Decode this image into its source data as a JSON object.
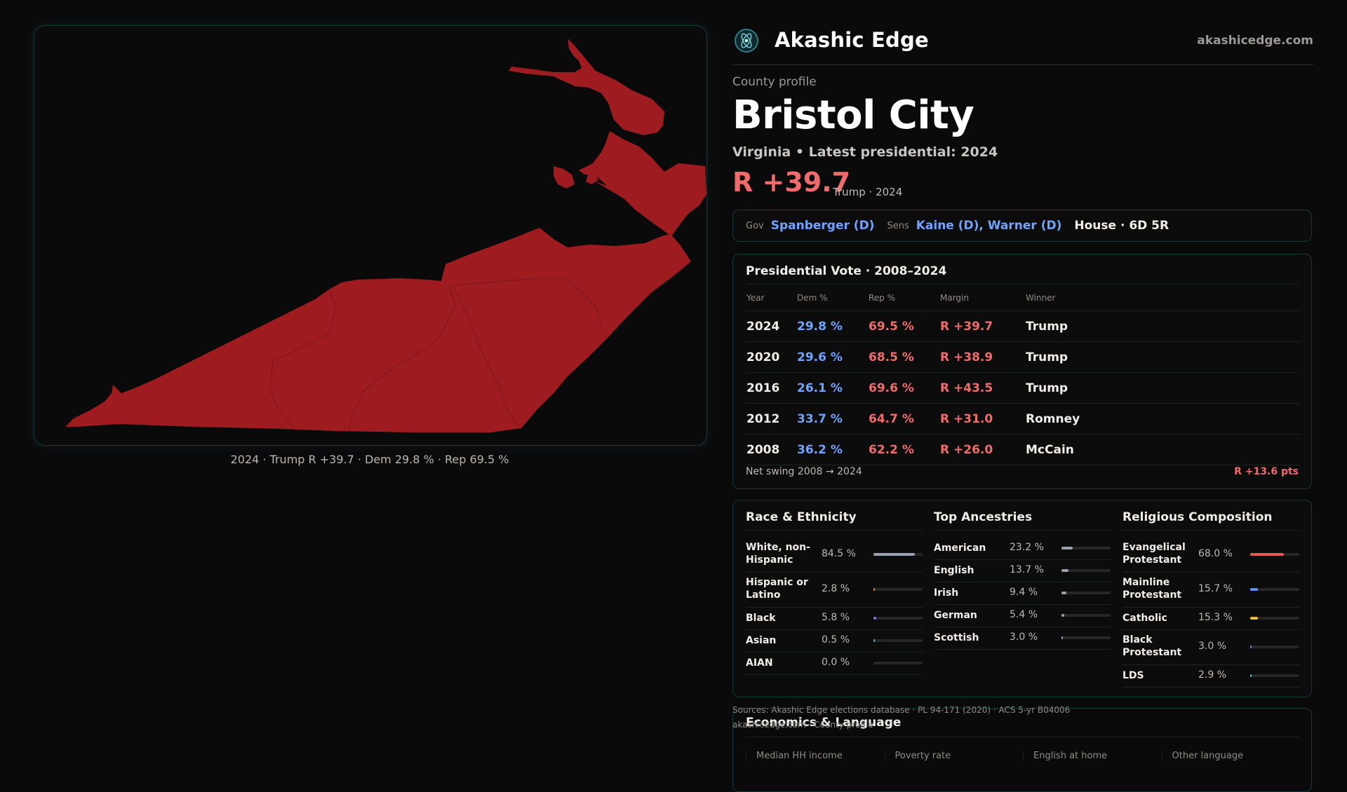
{
  "map": {
    "caption": "2024 · Trump R +39.7 · Dem 29.8 % · Rep 69.5 %",
    "fill_color": "#9e1c20",
    "border_color": "#16393b"
  },
  "header": {
    "brand": "Akashic Edge",
    "domain": "akashicedge.com",
    "logo_icon": "atom-logo-icon"
  },
  "profile": {
    "eyebrow": "County profile",
    "title": "Bristol City",
    "subtitle": "Virginia • Latest presidential: 2024",
    "margin": "R +39.7",
    "margin_note": "Trump · 2024"
  },
  "officials": {
    "gov_label": "Gov",
    "gov": "Spanberger (D)",
    "sens_label": "Sens",
    "sens": "Kaine (D), Warner (D)",
    "house": "House · 6D 5R"
  },
  "presidential": {
    "title": "Presidential Vote · 2008–2024",
    "columns": [
      "Year",
      "Dem %",
      "Rep %",
      "Margin",
      "Winner"
    ],
    "rows": [
      {
        "year": "2024",
        "dem": "29.8 %",
        "rep": "69.5 %",
        "margin": "R +39.7",
        "winner": "Trump"
      },
      {
        "year": "2020",
        "dem": "29.6 %",
        "rep": "68.5 %",
        "margin": "R +38.9",
        "winner": "Trump"
      },
      {
        "year": "2016",
        "dem": "26.1 %",
        "rep": "69.6 %",
        "margin": "R +43.5",
        "winner": "Trump"
      },
      {
        "year": "2012",
        "dem": "33.7 %",
        "rep": "64.7 %",
        "margin": "R +31.0",
        "winner": "Romney"
      },
      {
        "year": "2008",
        "dem": "36.2 %",
        "rep": "62.2 %",
        "margin": "R +26.0",
        "winner": "McCain"
      }
    ],
    "swing_label": "Net swing 2008 → 2024",
    "swing_value": "R +13.6 pts"
  },
  "race": {
    "title": "Race & Ethnicity",
    "items": [
      {
        "label": "White, non-Hispanic",
        "pct": "84.5 %",
        "value": 84.5,
        "color": "#9aa3b2"
      },
      {
        "label": "Hispanic or Latino",
        "pct": "2.8 %",
        "value": 2.8,
        "color": "#e08a3c"
      },
      {
        "label": "Black",
        "pct": "5.8 %",
        "value": 5.8,
        "color": "#8a6fe0"
      },
      {
        "label": "Asian",
        "pct": "0.5 %",
        "value": 0.5,
        "color": "#4fb0c6"
      },
      {
        "label": "AIAN",
        "pct": "0.0 %",
        "value": 0.0,
        "color": "#777777"
      }
    ]
  },
  "ancestry": {
    "title": "Top Ancestries",
    "items": [
      {
        "label": "American",
        "pct": "23.2 %",
        "value": 23.2,
        "color": "#9aa3b2"
      },
      {
        "label": "English",
        "pct": "13.7 %",
        "value": 13.7,
        "color": "#9aa3b2"
      },
      {
        "label": "Irish",
        "pct": "9.4 %",
        "value": 9.4,
        "color": "#9aa3b2"
      },
      {
        "label": "German",
        "pct": "5.4 %",
        "value": 5.4,
        "color": "#9aa3b2"
      },
      {
        "label": "Scottish",
        "pct": "3.0 %",
        "value": 3.0,
        "color": "#9aa3b2"
      }
    ]
  },
  "religion": {
    "title": "Religious Composition",
    "items": [
      {
        "label": "Evangelical Protestant",
        "pct": "68.0 %",
        "value": 68.0,
        "color": "#e05a5a"
      },
      {
        "label": "Mainline Protestant",
        "pct": "15.7 %",
        "value": 15.7,
        "color": "#5f8ff0"
      },
      {
        "label": "Catholic",
        "pct": "15.3 %",
        "value": 15.3,
        "color": "#e8c040"
      },
      {
        "label": "Black Protestant",
        "pct": "3.0 %",
        "value": 3.0,
        "color": "#8a6fe0"
      },
      {
        "label": "LDS",
        "pct": "2.9 %",
        "value": 2.9,
        "color": "#4fb0c6"
      }
    ]
  },
  "sources": {
    "line1": "Sources: Akashic Edge elections database · PL 94-171 (2020) · ACS 5-yr B04006",
    "line2": "akashicedge.com · County profile"
  },
  "economics": {
    "title": "Economics & Language",
    "columns": [
      "Median HH income",
      "Poverty rate",
      "English at home",
      "Other language"
    ]
  }
}
